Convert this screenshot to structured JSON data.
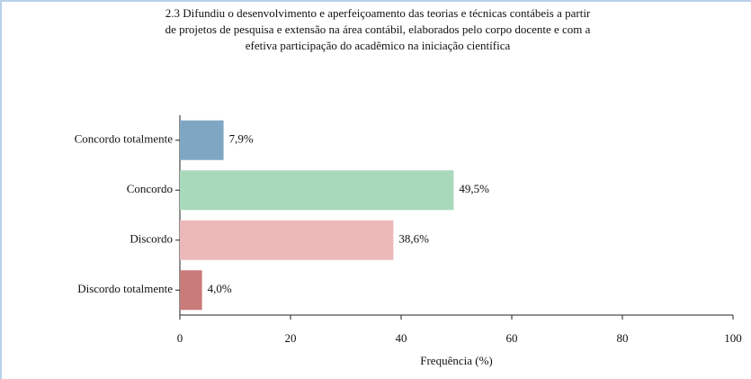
{
  "chart_data": {
    "type": "bar",
    "orientation": "horizontal",
    "title": [
      "2.3 Difundiu o desenvolvimento e aperfeiçoamento das teorias e técnicas contábeis a partir",
      "de projetos de pesquisa e extensão na área contábil, elaborados pelo corpo docente e com a",
      "efetiva participação do  acadêmico na iniciação científica"
    ],
    "categories": [
      "Concordo totalmente",
      "Concordo",
      "Discordo",
      "Discordo totalmente"
    ],
    "values": [
      7.9,
      49.5,
      38.6,
      4.0
    ],
    "value_labels": [
      "7,9%",
      "49,5%",
      "38,6%",
      "4,0%"
    ],
    "colors": [
      "#7fa7c4",
      "#a9d9bb",
      "#ecb9b9",
      "#c97a7a"
    ],
    "xlabel": "Frequência (%)",
    "xlim": [
      0,
      100
    ],
    "xticks": [
      0,
      20,
      40,
      60,
      80,
      100
    ],
    "grid": false
  }
}
